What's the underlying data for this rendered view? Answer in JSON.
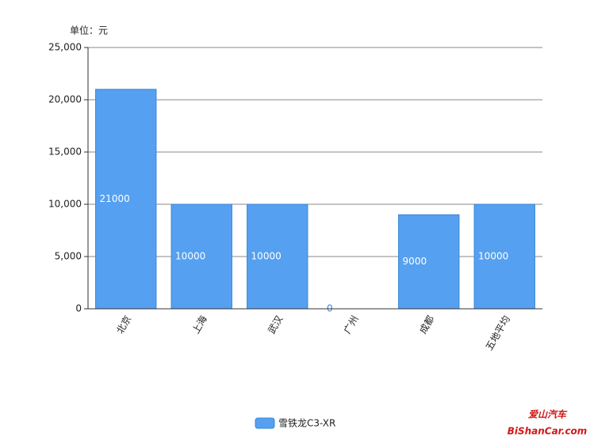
{
  "chart_data": {
    "type": "bar",
    "unit_label": "单位：元",
    "categories": [
      "北京",
      "上海",
      "武汉",
      "广州",
      "成都",
      "五地平均"
    ],
    "series": [
      {
        "name": "雪铁龙C3-XR",
        "color": "#55a0f0",
        "values": [
          21000,
          10000,
          10000,
          0,
          9000,
          10000
        ]
      }
    ],
    "ylim": [
      0,
      25000
    ],
    "yticks": [
      0,
      {
        "value": 5000,
        "label": "5,000"
      },
      {
        "value": 10000,
        "label": "10,000"
      },
      {
        "value": 15000,
        "label": "15,000"
      },
      {
        "value": 20000,
        "label": "20,000"
      },
      {
        "value": 25000,
        "label": "25,000"
      }
    ],
    "grid": true
  },
  "watermark": {
    "line1": "爱山汽车",
    "line2": "BiShanCar.com"
  }
}
